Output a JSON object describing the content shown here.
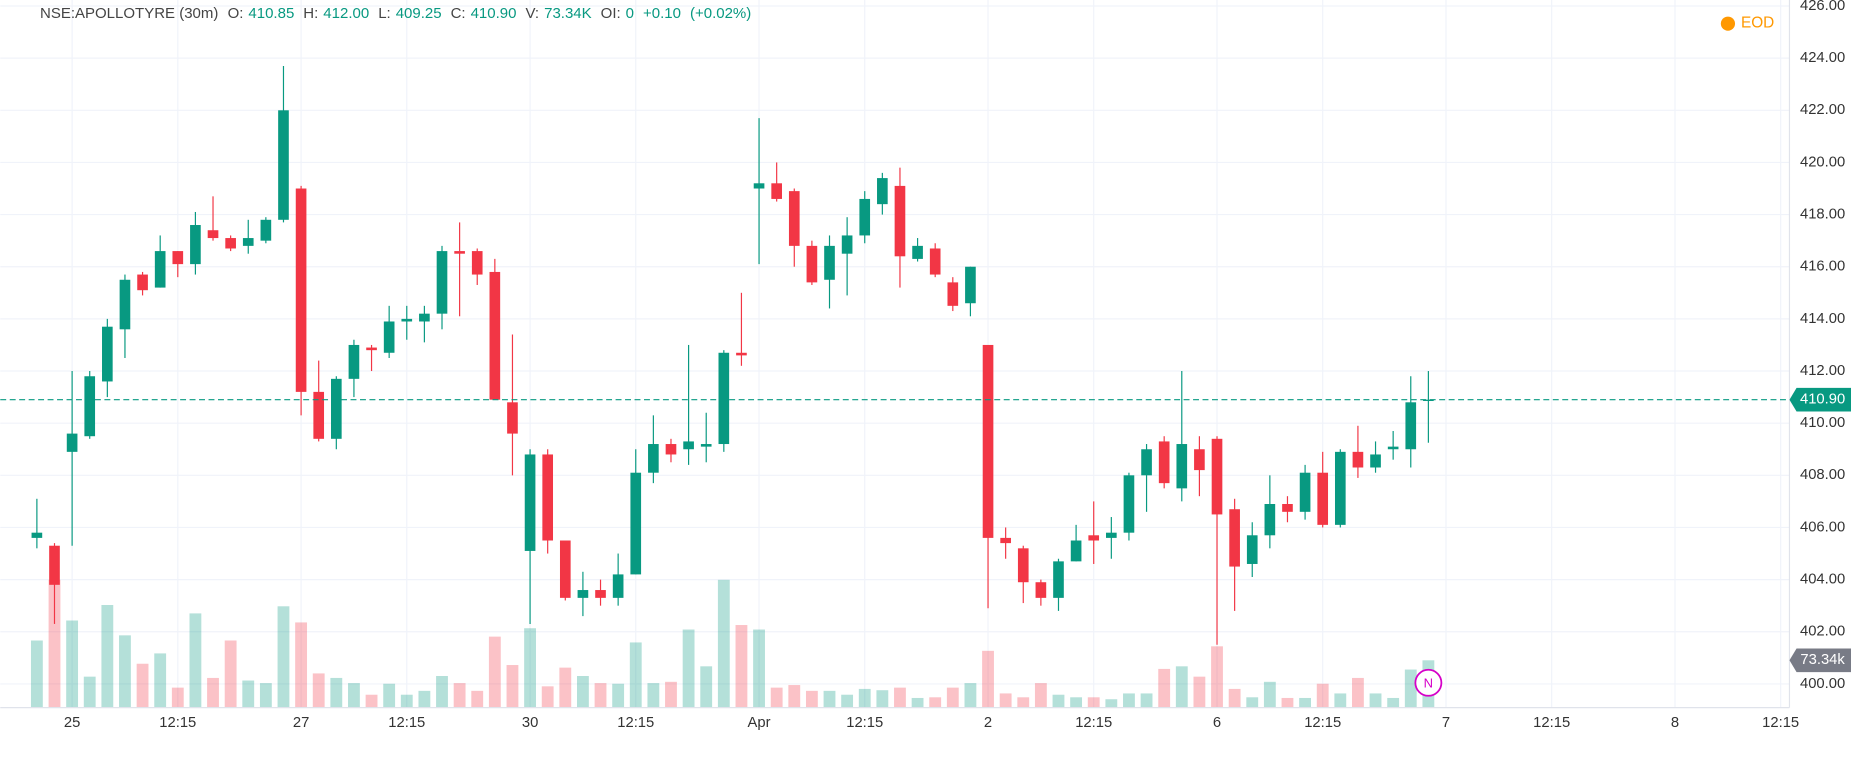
{
  "header": {
    "symbol": "NSE:APOLLOTYRE (30m)",
    "fields": [
      {
        "label": "O:",
        "value": "410.85"
      },
      {
        "label": "H:",
        "value": "412.00"
      },
      {
        "label": "L:",
        "value": "409.25"
      },
      {
        "label": "C:",
        "value": "410.90"
      },
      {
        "label": "V:",
        "value": "73.34K"
      },
      {
        "label": "OI:",
        "value": "0"
      }
    ],
    "change": "+0.10",
    "change_pct": "(+0.02%)",
    "badge": "EOD"
  },
  "chart_data": {
    "type": "candlestick",
    "up_color": "#089981",
    "down_color": "#f23645",
    "grid": true,
    "categories": [
      null,
      null,
      "25",
      null,
      null,
      null,
      null,
      null,
      "12:15",
      null,
      null,
      null,
      null,
      null,
      null,
      "27",
      null,
      null,
      null,
      null,
      null,
      "12:15",
      null,
      null,
      null,
      null,
      null,
      null,
      "30",
      null,
      null,
      null,
      null,
      null,
      "12:15",
      null,
      null,
      null,
      null,
      null,
      null,
      "Apr",
      null,
      null,
      null,
      null,
      null,
      "12:15",
      null,
      null,
      null,
      null,
      null,
      null,
      "2",
      null,
      null,
      null,
      null,
      null,
      "12:15",
      null,
      null,
      null,
      null,
      null,
      null,
      "6",
      null,
      null,
      null,
      null,
      null,
      "12:15",
      null,
      null,
      null,
      null,
      null,
      null,
      "7",
      null,
      null,
      null,
      null,
      null,
      "12:15",
      null,
      null,
      null,
      null,
      null,
      null,
      "8",
      null,
      null,
      null,
      null,
      null,
      "12:15"
    ],
    "open": [
      405.6,
      405.3,
      408.9,
      409.5,
      411.6,
      413.6,
      415.7,
      415.2,
      416.6,
      416.1,
      417.4,
      417.1,
      416.8,
      417.0,
      417.8,
      419.0,
      411.2,
      409.4,
      411.7,
      412.9,
      412.7,
      413.9,
      413.9,
      414.2,
      416.6,
      416.6,
      415.8,
      410.8,
      405.1,
      408.8,
      405.5,
      403.3,
      403.6,
      403.3,
      404.2,
      408.1,
      409.2,
      409.0,
      409.1,
      409.2,
      412.7,
      419.0,
      419.2,
      418.9,
      416.8,
      415.5,
      416.5,
      417.2,
      418.4,
      419.1,
      416.3,
      416.7,
      415.4,
      414.6,
      413.0,
      405.6,
      405.2,
      403.9,
      403.3,
      404.7,
      405.7,
      405.6,
      405.8,
      408.0,
      409.3,
      407.5,
      409.0,
      409.4,
      406.7,
      404.6,
      405.7,
      406.9,
      406.6,
      408.1,
      406.1,
      408.9,
      408.3,
      409.0,
      409.0,
      410.85,
      null,
      null,
      null,
      null,
      null,
      null,
      null,
      null,
      null,
      null,
      null,
      null,
      null,
      null,
      null,
      null,
      null,
      null,
      null,
      null
    ],
    "high": [
      407.1,
      405.4,
      412.0,
      412.0,
      414.0,
      415.7,
      415.8,
      417.2,
      416.6,
      418.1,
      418.7,
      417.2,
      417.8,
      417.9,
      423.7,
      419.1,
      412.4,
      411.8,
      413.2,
      413.0,
      414.5,
      414.5,
      414.5,
      416.8,
      417.7,
      416.7,
      416.3,
      413.4,
      409.0,
      409.0,
      405.5,
      404.3,
      404.0,
      405.0,
      409.0,
      410.3,
      409.4,
      413.0,
      410.4,
      412.8,
      415.0,
      421.7,
      420.0,
      419.0,
      417.0,
      417.2,
      417.9,
      418.9,
      419.6,
      419.8,
      417.1,
      416.9,
      415.6,
      416.0,
      413.0,
      406.0,
      405.3,
      404.0,
      404.8,
      406.1,
      407.0,
      406.4,
      408.1,
      409.2,
      409.5,
      412.0,
      409.5,
      409.5,
      407.1,
      406.2,
      408.0,
      407.2,
      408.4,
      408.9,
      409.0,
      409.9,
      409.3,
      409.7,
      411.8,
      412.0,
      null,
      null,
      null,
      null,
      null,
      null,
      null,
      null,
      null,
      null,
      null,
      null,
      null,
      null,
      null,
      null,
      null,
      null,
      null,
      null
    ],
    "low": [
      405.2,
      402.3,
      405.3,
      409.4,
      411.0,
      412.5,
      414.9,
      415.2,
      415.6,
      415.7,
      417.0,
      416.6,
      416.5,
      416.9,
      417.7,
      410.3,
      409.3,
      409.0,
      411.0,
      412.0,
      412.5,
      413.2,
      413.1,
      413.6,
      414.1,
      415.3,
      410.9,
      408.0,
      402.3,
      405.0,
      403.2,
      402.6,
      403.0,
      403.0,
      404.2,
      407.7,
      408.5,
      408.4,
      408.5,
      408.9,
      412.2,
      416.1,
      418.5,
      416.0,
      415.3,
      414.4,
      414.9,
      416.9,
      418.0,
      415.2,
      416.2,
      415.6,
      414.3,
      414.1,
      402.9,
      404.8,
      403.1,
      403.0,
      402.8,
      404.7,
      404.6,
      404.8,
      405.5,
      406.6,
      407.5,
      407.0,
      407.2,
      401.5,
      402.8,
      404.1,
      405.2,
      406.2,
      406.3,
      406.0,
      406.0,
      407.9,
      408.1,
      408.6,
      408.3,
      409.25,
      null,
      null,
      null,
      null,
      null,
      null,
      null,
      null,
      null,
      null,
      null,
      null,
      null,
      null,
      null,
      null,
      null,
      null,
      null,
      null
    ],
    "close": [
      405.8,
      403.8,
      409.6,
      411.8,
      413.7,
      415.5,
      415.1,
      416.6,
      416.1,
      417.6,
      417.1,
      416.7,
      417.1,
      417.8,
      422.0,
      411.2,
      409.4,
      411.7,
      413.0,
      412.8,
      413.9,
      414.0,
      414.2,
      416.6,
      416.5,
      415.7,
      410.9,
      409.6,
      408.8,
      405.5,
      403.3,
      403.6,
      403.3,
      404.2,
      408.1,
      409.2,
      408.8,
      409.3,
      409.2,
      412.7,
      412.6,
      419.2,
      418.6,
      416.8,
      415.4,
      416.8,
      417.2,
      418.6,
      419.4,
      416.4,
      416.8,
      415.7,
      414.5,
      416.0,
      405.6,
      405.4,
      403.9,
      403.3,
      404.7,
      405.5,
      405.5,
      405.8,
      408.0,
      409.0,
      407.7,
      409.2,
      408.2,
      406.5,
      404.5,
      405.7,
      406.9,
      406.6,
      408.1,
      406.1,
      408.9,
      408.3,
      408.8,
      409.1,
      410.8,
      410.9,
      null,
      null,
      null,
      null,
      null,
      null,
      null,
      null,
      null,
      null,
      null,
      null,
      null,
      null,
      null,
      null,
      null,
      null,
      null,
      null
    ],
    "volume": [
      104,
      198,
      135,
      48,
      159,
      112,
      68,
      84,
      31,
      146,
      46,
      104,
      42,
      38,
      157,
      132,
      53,
      46,
      38,
      20,
      37,
      20,
      26,
      49,
      38,
      26,
      110,
      66,
      123,
      33,
      62,
      49,
      38,
      37,
      101,
      38,
      40,
      121,
      64,
      198,
      128,
      121,
      31,
      35,
      26,
      26,
      20,
      29,
      27,
      31,
      15,
      16,
      31,
      38,
      88,
      22,
      16,
      38,
      20,
      16,
      16,
      13,
      22,
      22,
      60,
      64,
      48,
      95,
      29,
      16,
      40,
      15,
      15,
      37,
      22,
      46,
      22,
      15,
      59,
      73.34,
      null,
      null,
      null,
      null,
      null,
      null,
      null,
      null,
      null,
      null,
      null,
      null,
      null,
      null,
      null,
      null,
      null,
      null,
      null,
      null
    ],
    "ylim": [
      399.09,
      426.23
    ],
    "yticks": [
      {
        "value": 400,
        "label": "400.00"
      },
      {
        "value": 402,
        "label": "402.00"
      },
      {
        "value": 404,
        "label": "404.00"
      },
      {
        "value": 406,
        "label": "406.00"
      },
      {
        "value": 408,
        "label": "408.00"
      },
      {
        "value": 410,
        "label": "410.00"
      },
      {
        "value": 412,
        "label": "412.00"
      },
      {
        "value": 414,
        "label": "414.00"
      },
      {
        "value": 416,
        "label": "416.00"
      },
      {
        "value": 418,
        "label": "418.00"
      },
      {
        "value": 420,
        "label": "420.00"
      },
      {
        "value": 422,
        "label": "422.00"
      },
      {
        "value": 424,
        "label": "424.00"
      },
      {
        "value": 426,
        "label": "426.00"
      }
    ],
    "volume_ylim": [
      0,
      220
    ],
    "last_price": {
      "value": 410.9,
      "label": "410.90"
    },
    "last_volume": {
      "value": 73.34,
      "label": "73.34k"
    },
    "marker_label": "N"
  }
}
